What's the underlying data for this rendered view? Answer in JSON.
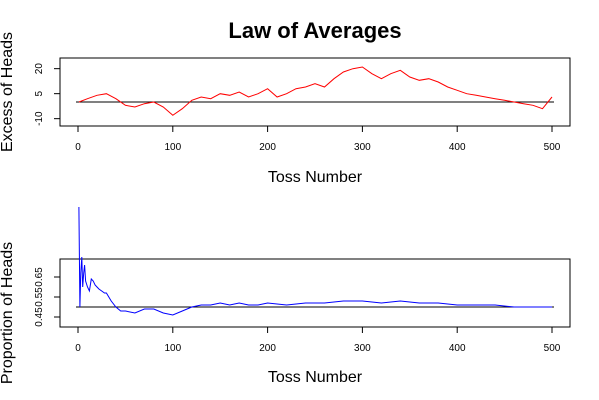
{
  "title": "Law of Averages",
  "chart_data": [
    {
      "type": "line",
      "xlabel": "Toss Number",
      "ylabel": "Excess of Heads",
      "xlim": [
        0,
        500
      ],
      "ylim": [
        -12,
        24
      ],
      "xticks": [
        0,
        100,
        200,
        300,
        400,
        500
      ],
      "yticks": [
        -10,
        5,
        20
      ],
      "reference_line": 0,
      "grid": false,
      "color": "#ff0000",
      "series": [
        {
          "x": [
            1,
            10,
            20,
            30,
            40,
            50,
            60,
            70,
            80,
            90,
            100,
            110,
            120,
            130,
            140,
            150,
            160,
            170,
            180,
            190,
            200,
            210,
            220,
            230,
            240,
            250,
            260,
            270,
            280,
            290,
            300,
            310,
            320,
            330,
            340,
            350,
            360,
            370,
            380,
            390,
            400,
            410,
            420,
            430,
            440,
            450,
            460,
            470,
            480,
            490,
            500
          ],
          "y": [
            0,
            2,
            4,
            5,
            2,
            -2,
            -3,
            -1,
            0,
            -3,
            -8,
            -4,
            1,
            3,
            2,
            5,
            4,
            6,
            3,
            5,
            8,
            3,
            5,
            8,
            9,
            11,
            9,
            14,
            18,
            20,
            21,
            17,
            14,
            17,
            19,
            15,
            13,
            14,
            12,
            9,
            7,
            5,
            4,
            3,
            2,
            1,
            0,
            -1,
            -2,
            -4,
            3
          ]
        }
      ]
    },
    {
      "type": "line",
      "xlabel": "Toss Number",
      "ylabel": "Proportion of Heads",
      "xlim": [
        0,
        500
      ],
      "ylim": [
        0.42,
        0.72
      ],
      "xticks": [
        0,
        100,
        200,
        300,
        400,
        500
      ],
      "yticks": [
        0.45,
        0.55,
        0.65
      ],
      "reference_line": 0.5,
      "grid": false,
      "color": "#0000ff",
      "series": [
        {
          "x": [
            1,
            2,
            3,
            4,
            5,
            6,
            7,
            8,
            10,
            12,
            14,
            16,
            18,
            20,
            22,
            25,
            28,
            30,
            35,
            40,
            45,
            50,
            60,
            70,
            80,
            90,
            100,
            110,
            120,
            130,
            140,
            150,
            160,
            170,
            180,
            190,
            200,
            220,
            240,
            260,
            280,
            300,
            320,
            340,
            360,
            380,
            400,
            420,
            440,
            460,
            480,
            500
          ],
          "y": [
            1.0,
            0.5,
            0.67,
            0.75,
            0.6,
            0.67,
            0.71,
            0.63,
            0.6,
            0.58,
            0.64,
            0.63,
            0.61,
            0.6,
            0.59,
            0.58,
            0.57,
            0.57,
            0.53,
            0.5,
            0.48,
            0.48,
            0.47,
            0.49,
            0.49,
            0.47,
            0.46,
            0.48,
            0.5,
            0.51,
            0.51,
            0.52,
            0.51,
            0.52,
            0.51,
            0.51,
            0.52,
            0.51,
            0.52,
            0.52,
            0.53,
            0.53,
            0.52,
            0.53,
            0.52,
            0.52,
            0.51,
            0.51,
            0.51,
            0.5,
            0.5,
            0.5
          ]
        }
      ]
    }
  ]
}
